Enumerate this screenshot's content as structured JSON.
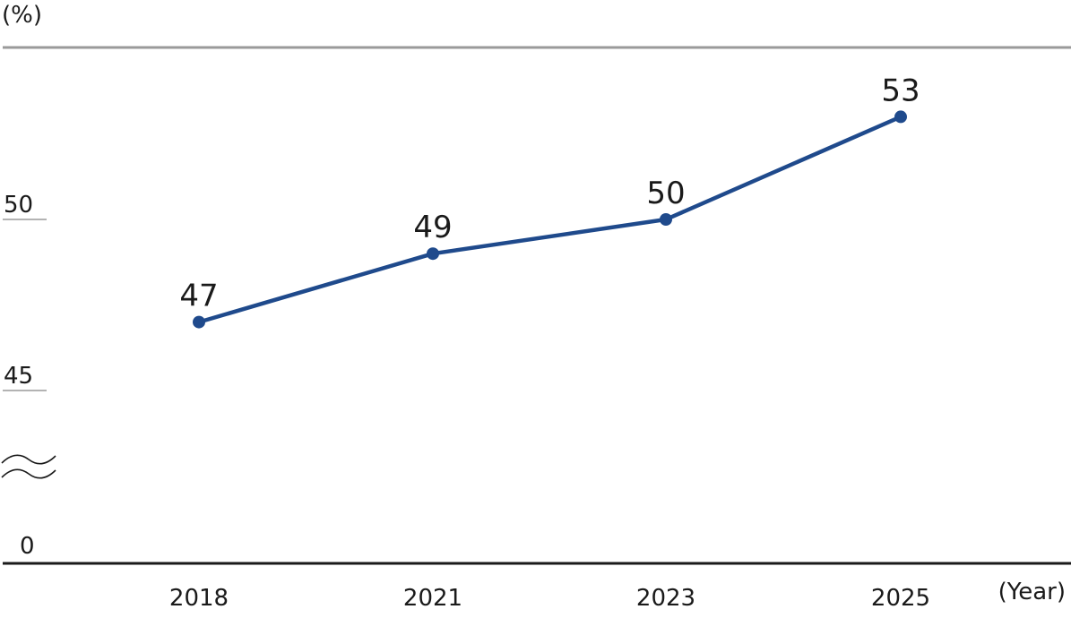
{
  "chart_data": {
    "type": "line",
    "y_unit": "(%)",
    "x_unit": "(Year)",
    "categories": [
      "2018",
      "2021",
      "2023",
      "2025"
    ],
    "series": [
      {
        "values": [
          47,
          49,
          50,
          53
        ],
        "color": "#1f4a8c"
      }
    ],
    "y_ticks": [
      {
        "label": "0",
        "value": 0
      },
      {
        "label": "45",
        "value": 45
      },
      {
        "label": "50",
        "value": 50
      }
    ],
    "axis_break": true,
    "colors": {
      "line": "#1f4a8c",
      "top_rule": "#9a9a9a",
      "baseline": "#1a1a1a",
      "tick": "#9a9a9a"
    }
  }
}
